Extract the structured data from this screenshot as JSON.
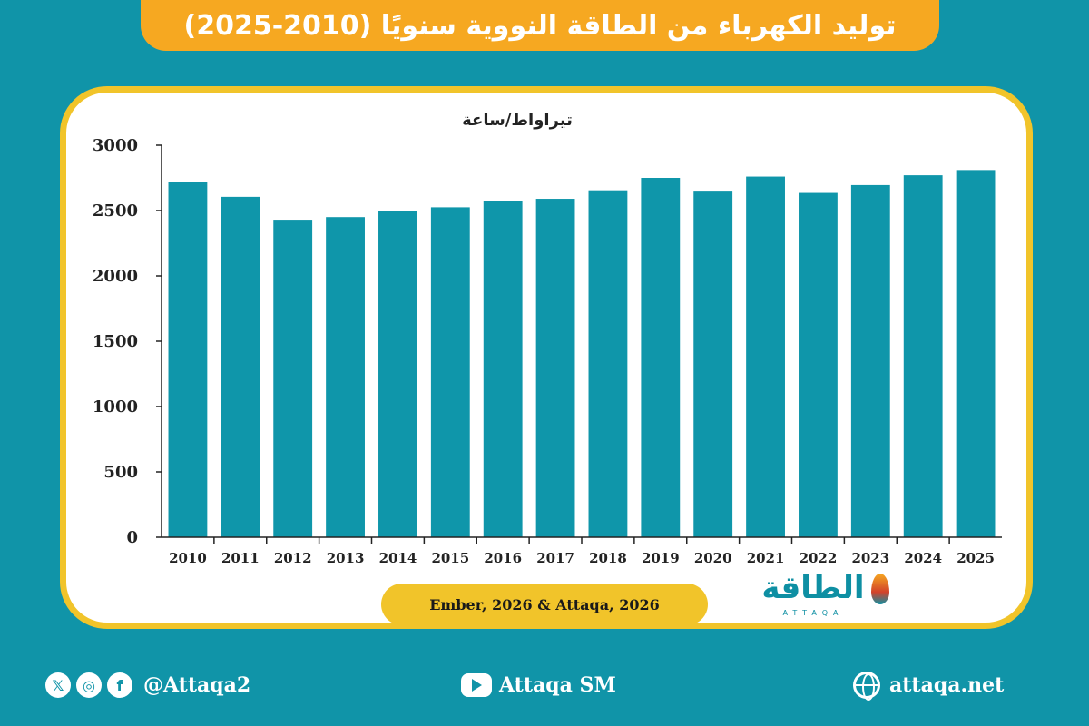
{
  "header": {
    "title": "توليد الكهرباء من الطاقة النووية سنويًا (2010-2025)"
  },
  "chart_data": {
    "type": "bar",
    "ylabel": "تيراواط/ساعة",
    "ylim": [
      0,
      3000
    ],
    "yticks": [
      "0",
      "500",
      "1000",
      "1500",
      "2000",
      "2500",
      "3000"
    ],
    "categories": [
      "2010",
      "2011",
      "2012",
      "2013",
      "2014",
      "2015",
      "2016",
      "2017",
      "2018",
      "2019",
      "2020",
      "2021",
      "2022",
      "2023",
      "2024",
      "2025"
    ],
    "values": [
      2720,
      2605,
      2430,
      2450,
      2495,
      2525,
      2570,
      2590,
      2655,
      2750,
      2645,
      2760,
      2635,
      2695,
      2770,
      2810
    ],
    "bar_color": "#0f96aa",
    "grid": false
  },
  "source": "Ember, 2026 & Attaqa, 2026",
  "logo": {
    "text": "الطاقة",
    "sub": "ATTAQA"
  },
  "footer": {
    "social_handle": "@Attaqa2",
    "youtube": "Attaqa SM",
    "website": "attaqa.net",
    "x_icon_glyph": "𝕏",
    "instagram_icon_glyph": "◎",
    "facebook_icon_glyph": "f"
  },
  "colors": {
    "background": "#1094a8",
    "accent": "#f6a821",
    "border": "#f1c42a"
  }
}
